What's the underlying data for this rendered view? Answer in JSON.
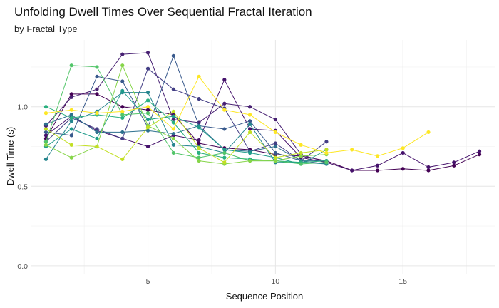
{
  "chart_data": {
    "type": "line",
    "title": "Unfolding Dwell Times Over Sequential Fractal Iteration",
    "subtitle": "by Fractal Type",
    "xlabel": "Sequence Position",
    "ylabel": "Dwell Time (s)",
    "xlim": [
      0.4,
      18.6
    ],
    "ylim": [
      -0.05,
      1.42
    ],
    "x_ticks": [
      5,
      10,
      15
    ],
    "y_ticks": [
      0.0,
      0.5,
      1.0
    ],
    "y_tick_labels": [
      "0.0",
      "0.5",
      "1.0"
    ],
    "grid": true,
    "legend": "none",
    "series": [
      {
        "color": "#440154",
        "x": [
          1,
          2,
          3,
          4,
          5,
          6,
          7,
          8,
          9,
          10,
          11,
          12,
          13,
          14,
          15,
          16,
          17,
          18
        ],
        "y": [
          0.8,
          1.08,
          1.08,
          1.0,
          0.98,
          0.95,
          0.77,
          0.74,
          0.73,
          0.7,
          0.69,
          0.66,
          0.6,
          0.6,
          0.61,
          0.6,
          0.63,
          0.7
        ]
      },
      {
        "color": "#45116b",
        "x": [
          1,
          2,
          3,
          4,
          5,
          6,
          7,
          8,
          9,
          10,
          11,
          12,
          13,
          14,
          15,
          16,
          17,
          18
        ],
        "y": [
          0.82,
          0.94,
          0.85,
          0.8,
          0.75,
          0.82,
          0.79,
          1.17,
          0.86,
          0.85,
          0.68,
          0.65,
          0.6,
          0.63,
          0.71,
          0.62,
          0.65,
          0.72
        ]
      },
      {
        "color": "#482173",
        "x": [
          1,
          2,
          3,
          4,
          5,
          6,
          7,
          8,
          9,
          10,
          11,
          12
        ],
        "y": [
          0.88,
          1.06,
          1.11,
          1.33,
          1.34,
          0.92,
          0.9,
          1.02,
          1.0,
          0.92,
          0.7,
          0.65
        ]
      },
      {
        "color": "#433e85",
        "x": [
          1,
          2,
          3,
          4,
          5,
          6,
          7,
          8,
          9,
          10,
          11,
          12
        ],
        "y": [
          0.78,
          0.93,
          0.86,
          0.8,
          1.24,
          1.11,
          1.05,
          0.99,
          0.72,
          0.77,
          0.66,
          0.78
        ]
      },
      {
        "color": "#38598c",
        "x": [
          1,
          2,
          3,
          4,
          5,
          6,
          7,
          8,
          9,
          10,
          11,
          12
        ],
        "y": [
          0.84,
          0.82,
          1.19,
          1.16,
          0.87,
          1.32,
          0.88,
          0.86,
          0.91,
          0.71,
          0.66,
          0.64
        ]
      },
      {
        "color": "#2d708e",
        "x": [
          1,
          2,
          3,
          4,
          5,
          6,
          7,
          8,
          9,
          10,
          11,
          12
        ],
        "y": [
          0.89,
          0.95,
          0.84,
          0.84,
          0.85,
          0.83,
          0.88,
          0.73,
          0.72,
          0.75,
          0.66,
          0.66
        ]
      },
      {
        "color": "#25858e",
        "x": [
          1,
          2,
          3,
          4,
          5,
          6,
          7,
          8,
          9,
          10,
          11,
          12
        ],
        "y": [
          0.67,
          0.91,
          0.97,
          1.09,
          1.09,
          0.76,
          0.75,
          0.71,
          0.89,
          0.65,
          0.65,
          0.64
        ]
      },
      {
        "color": "#1e9b8a",
        "x": [
          1,
          2,
          3,
          4,
          5,
          6,
          7,
          8,
          9,
          10,
          11,
          12
        ],
        "y": [
          0.75,
          0.86,
          0.8,
          1.1,
          0.92,
          0.94,
          0.87,
          0.73,
          0.71,
          0.68,
          0.64,
          0.73
        ]
      },
      {
        "color": "#2ab07f",
        "x": [
          1,
          2,
          3,
          4,
          5,
          6,
          7,
          8,
          9,
          10,
          11,
          12
        ],
        "y": [
          1.0,
          0.93,
          0.95,
          0.93,
          1.04,
          0.9,
          0.71,
          0.68,
          0.67,
          0.66,
          0.65,
          0.66
        ]
      },
      {
        "color": "#52c569",
        "x": [
          1,
          2,
          3,
          4,
          5,
          6,
          7,
          8,
          9,
          10,
          11,
          12
        ],
        "y": [
          0.78,
          1.26,
          1.25,
          0.95,
          0.96,
          0.71,
          0.68,
          0.71,
          0.66,
          0.66,
          0.64,
          0.65
        ]
      },
      {
        "color": "#86d549",
        "x": [
          1,
          2,
          3,
          4,
          5,
          6,
          7,
          8,
          9,
          10,
          11,
          12
        ],
        "y": [
          0.76,
          0.68,
          0.75,
          1.26,
          0.88,
          0.8,
          0.66,
          0.64,
          0.66,
          0.66,
          0.69,
          0.7
        ]
      },
      {
        "color": "#c2df23",
        "x": [
          1,
          2,
          3,
          4,
          5,
          6,
          7,
          8,
          9,
          10,
          11,
          12
        ],
        "y": [
          0.86,
          0.76,
          0.75,
          0.67,
          0.87,
          0.97,
          0.74,
          0.65,
          0.84,
          0.68,
          0.71,
          0.73
        ]
      },
      {
        "color": "#fde725",
        "x": [
          1,
          2,
          3,
          4,
          5,
          6,
          7,
          8,
          9,
          10,
          11,
          12,
          13,
          14,
          15,
          16
        ],
        "y": [
          0.96,
          0.98,
          0.96,
          0.97,
          1.0,
          0.86,
          1.19,
          0.98,
          0.95,
          0.84,
          0.76,
          0.71,
          0.73,
          0.69,
          0.74,
          0.84
        ]
      }
    ]
  }
}
